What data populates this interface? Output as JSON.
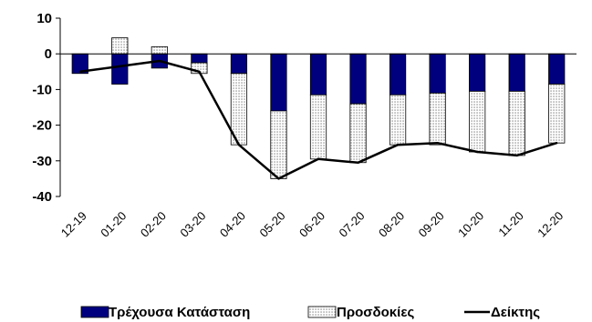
{
  "chart_data": {
    "type": "bar",
    "categories": [
      "12-19",
      "01-20",
      "02-20",
      "03-20",
      "04-20",
      "05-20",
      "06-20",
      "07-20",
      "08-20",
      "09-20",
      "10-20",
      "11-20",
      "12-20"
    ],
    "series": [
      {
        "name": "Τρέχουσα Κατάσταση",
        "kind": "stacked-bar",
        "color": "#00007f",
        "values": [
          -5.5,
          -8.5,
          -4,
          -2.5,
          -5.5,
          -16,
          -11.5,
          -14,
          -11.5,
          -11,
          -10.5,
          -10.5,
          -8.5
        ]
      },
      {
        "name": "Προσδοκίες",
        "kind": "stacked-bar",
        "pattern": "dotted",
        "values": [
          0,
          4.5,
          2,
          -3,
          -20,
          -19,
          -18,
          -16.5,
          -14,
          -14.5,
          -17,
          -18,
          -16.5
        ]
      },
      {
        "name": "Δείκτης",
        "kind": "line",
        "color": "#000000",
        "values": [
          -5,
          -3.5,
          -2,
          -5,
          -25.5,
          -35,
          -29.5,
          -30.5,
          -25.5,
          -25,
          -27.5,
          -28.5,
          -25
        ]
      }
    ],
    "ylim": [
      -40,
      10
    ],
    "yticks": [
      "10",
      "0",
      "-10",
      "-20",
      "-30",
      "-40"
    ],
    "grid": false,
    "legend_position": "bottom"
  }
}
